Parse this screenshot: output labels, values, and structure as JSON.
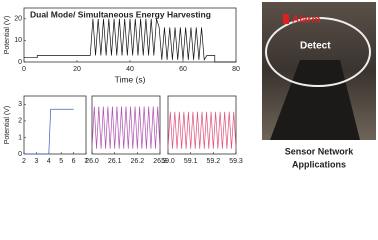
{
  "chart_data": [
    {
      "type": "line",
      "title": "Dual Mode/ Simultaneous Energy Harvesting",
      "x_label": "Time (s)",
      "y_label": "Potential (V)",
      "xlim": [
        0,
        80
      ],
      "xticks": [
        0,
        20,
        40,
        60,
        80
      ],
      "ylim": [
        0,
        25
      ],
      "yticks": [
        0,
        10,
        20
      ],
      "series": [
        {
          "color": "#111111",
          "x": [
            0,
            5,
            5,
            25,
            26,
            27,
            28,
            29,
            30,
            31,
            32,
            33,
            34,
            35,
            36,
            37,
            38,
            39,
            40,
            41,
            42,
            43,
            44,
            45,
            46,
            47,
            48,
            49,
            50,
            51,
            52,
            53,
            54,
            55,
            56,
            57,
            58,
            59,
            60,
            61,
            62,
            63,
            64,
            65,
            66,
            67,
            68,
            69,
            72,
            72,
            80
          ],
          "values": [
            2,
            2,
            3,
            3,
            20,
            3,
            20,
            3,
            20,
            3,
            20,
            3,
            20,
            3,
            20,
            3,
            20,
            3,
            20,
            3,
            20,
            3,
            20,
            3,
            20,
            3,
            20,
            3,
            20,
            16,
            1,
            16,
            1,
            16,
            1,
            16,
            1,
            16,
            1,
            16,
            1,
            16,
            1,
            16,
            1,
            16,
            1,
            3,
            3,
            0,
            0
          ]
        }
      ]
    },
    {
      "type": "line",
      "y_label": "Potential (V)",
      "xlim": [
        2,
        7
      ],
      "xticks": [
        2,
        3,
        4,
        5,
        6,
        7
      ],
      "ylim": [
        0,
        3.5
      ],
      "yticks": [
        0,
        1,
        2,
        3
      ],
      "series": [
        {
          "color": "#3b5fc0",
          "x": [
            2,
            4,
            4.15,
            6
          ],
          "values": [
            0,
            0,
            2.7,
            2.7
          ]
        }
      ]
    },
    {
      "type": "line",
      "xlim": [
        26,
        26.3
      ],
      "xticks": [
        {
          "value": 26,
          "label": "26.0"
        },
        26.1,
        26.2,
        26.3
      ],
      "ylim": [
        0,
        22
      ],
      "series": [
        {
          "color": "#b04fb0",
          "x": [
            26,
            26.01,
            26.02,
            26.03,
            26.04,
            26.05,
            26.06,
            26.07,
            26.08,
            26.09,
            26.1,
            26.11,
            26.12,
            26.13,
            26.14,
            26.15,
            26.16,
            26.17,
            26.18,
            26.19,
            26.2,
            26.21,
            26.22,
            26.23,
            26.24,
            26.25,
            26.26,
            26.27,
            26.28,
            26.29,
            26.3
          ],
          "values": [
            2,
            18,
            2,
            18,
            2,
            18,
            2,
            18,
            2,
            18,
            2,
            18,
            2,
            18,
            2,
            18,
            2,
            18,
            2,
            18,
            2,
            18,
            2,
            18,
            2,
            18,
            2,
            18,
            2,
            18,
            2
          ]
        }
      ]
    },
    {
      "type": "line",
      "xlim": [
        59,
        59.3
      ],
      "xticks": [
        {
          "value": 59,
          "label": "59.0"
        },
        59.1,
        59.2,
        59.3
      ],
      "ylim": [
        0,
        22
      ],
      "series": [
        {
          "color": "#e0507a",
          "x": [
            59,
            59.01,
            59.02,
            59.03,
            59.04,
            59.05,
            59.06,
            59.07,
            59.08,
            59.09,
            59.1,
            59.11,
            59.12,
            59.13,
            59.14,
            59.15,
            59.16,
            59.17,
            59.18,
            59.19,
            59.2,
            59.21,
            59.22,
            59.23,
            59.24,
            59.25,
            59.26,
            59.27,
            59.28,
            59.29,
            59.3
          ],
          "values": [
            2,
            16,
            2,
            16,
            2,
            16,
            2,
            16,
            2,
            16,
            2,
            16,
            2,
            16,
            2,
            16,
            2,
            16,
            2,
            16,
            2,
            16,
            2,
            16,
            2,
            16,
            2,
            16,
            2,
            16,
            2
          ]
        }
      ]
    }
  ],
  "photo": {
    "alarm": "Alarm",
    "detect": "Detect",
    "caption": [
      "Sensor Network",
      "Applications"
    ]
  }
}
